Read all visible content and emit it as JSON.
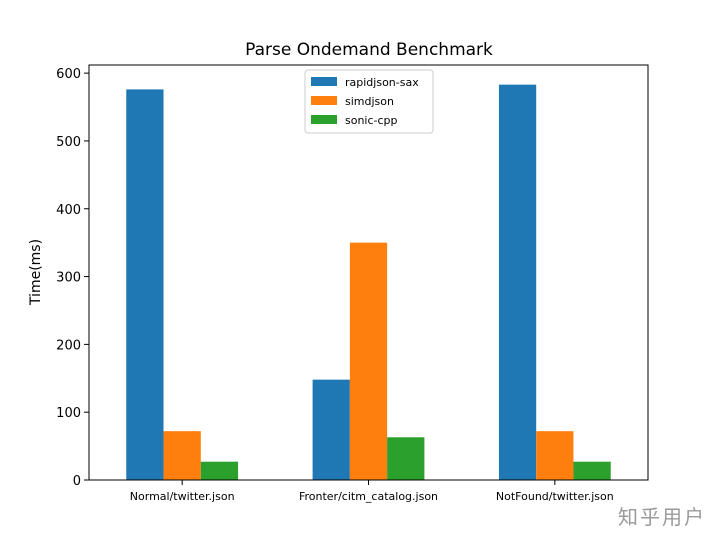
{
  "watermark": "知乎用户",
  "chart_data": {
    "type": "bar",
    "title": "Parse Ondemand Benchmark",
    "xlabel": "",
    "ylabel": "Time(ms)",
    "ylim": [
      0,
      612
    ],
    "yticks": [
      0,
      100,
      200,
      300,
      400,
      500,
      600
    ],
    "categories": [
      "Normal/twitter.json",
      "Fronter/citm_catalog.json",
      "NotFound/twitter.json"
    ],
    "series": [
      {
        "name": "rapidjson-sax",
        "color": "#1f77b4",
        "values": [
          576,
          148,
          583
        ]
      },
      {
        "name": "simdjson",
        "color": "#ff7f0e",
        "values": [
          72,
          350,
          72
        ]
      },
      {
        "name": "sonic-cpp",
        "color": "#2ca02c",
        "values": [
          27,
          63,
          27
        ]
      }
    ],
    "legend": "top-center",
    "grid": false
  }
}
